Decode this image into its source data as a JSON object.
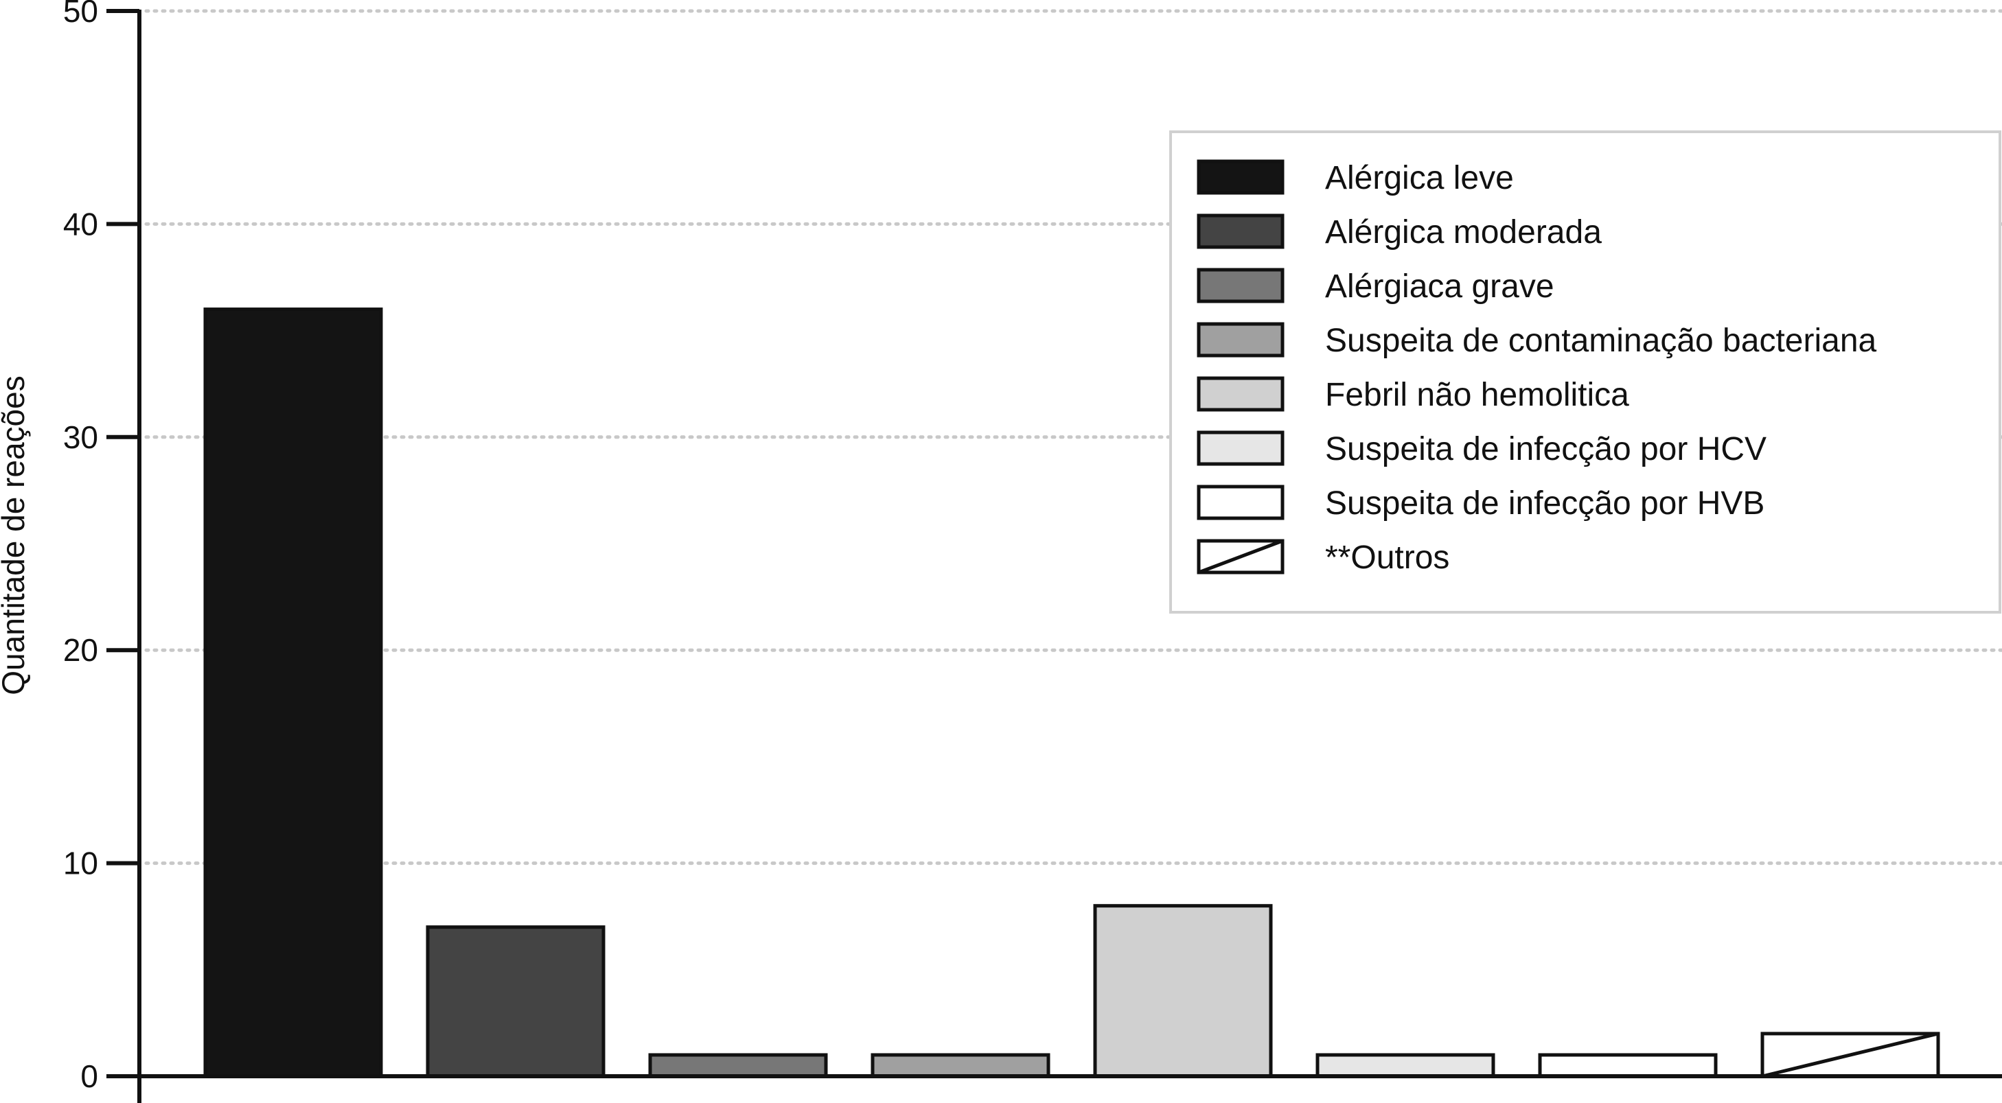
{
  "chart_data": {
    "type": "bar",
    "title": "",
    "xlabel": "",
    "ylabel": "Quantitade de reações",
    "ylim": [
      0,
      50
    ],
    "yticks": [
      0,
      10,
      20,
      30,
      40,
      50
    ],
    "grid": "horizontal dotted",
    "legend_position": "top-right",
    "categories": [
      "Alérgica leve",
      "Alérgica moderada",
      "Alérgiaca grave",
      "Suspeita de contaminação bacteriana",
      "Febril não hemolitica",
      "Suspeita de infecção por HCV",
      "Suspeita de infecção por  HVB",
      "**Outros"
    ],
    "values": [
      36,
      7,
      1,
      1,
      8,
      1,
      1,
      2
    ],
    "colors": [
      "#141414",
      "#444444",
      "#777777",
      "#a0a0a0",
      "#d0d0d0",
      "#e6e6e6",
      "#ffffff",
      "#ffffff"
    ],
    "patterns": [
      "solid",
      "solid",
      "solid",
      "solid",
      "solid",
      "solid",
      "solid",
      "diagonal-line"
    ]
  }
}
